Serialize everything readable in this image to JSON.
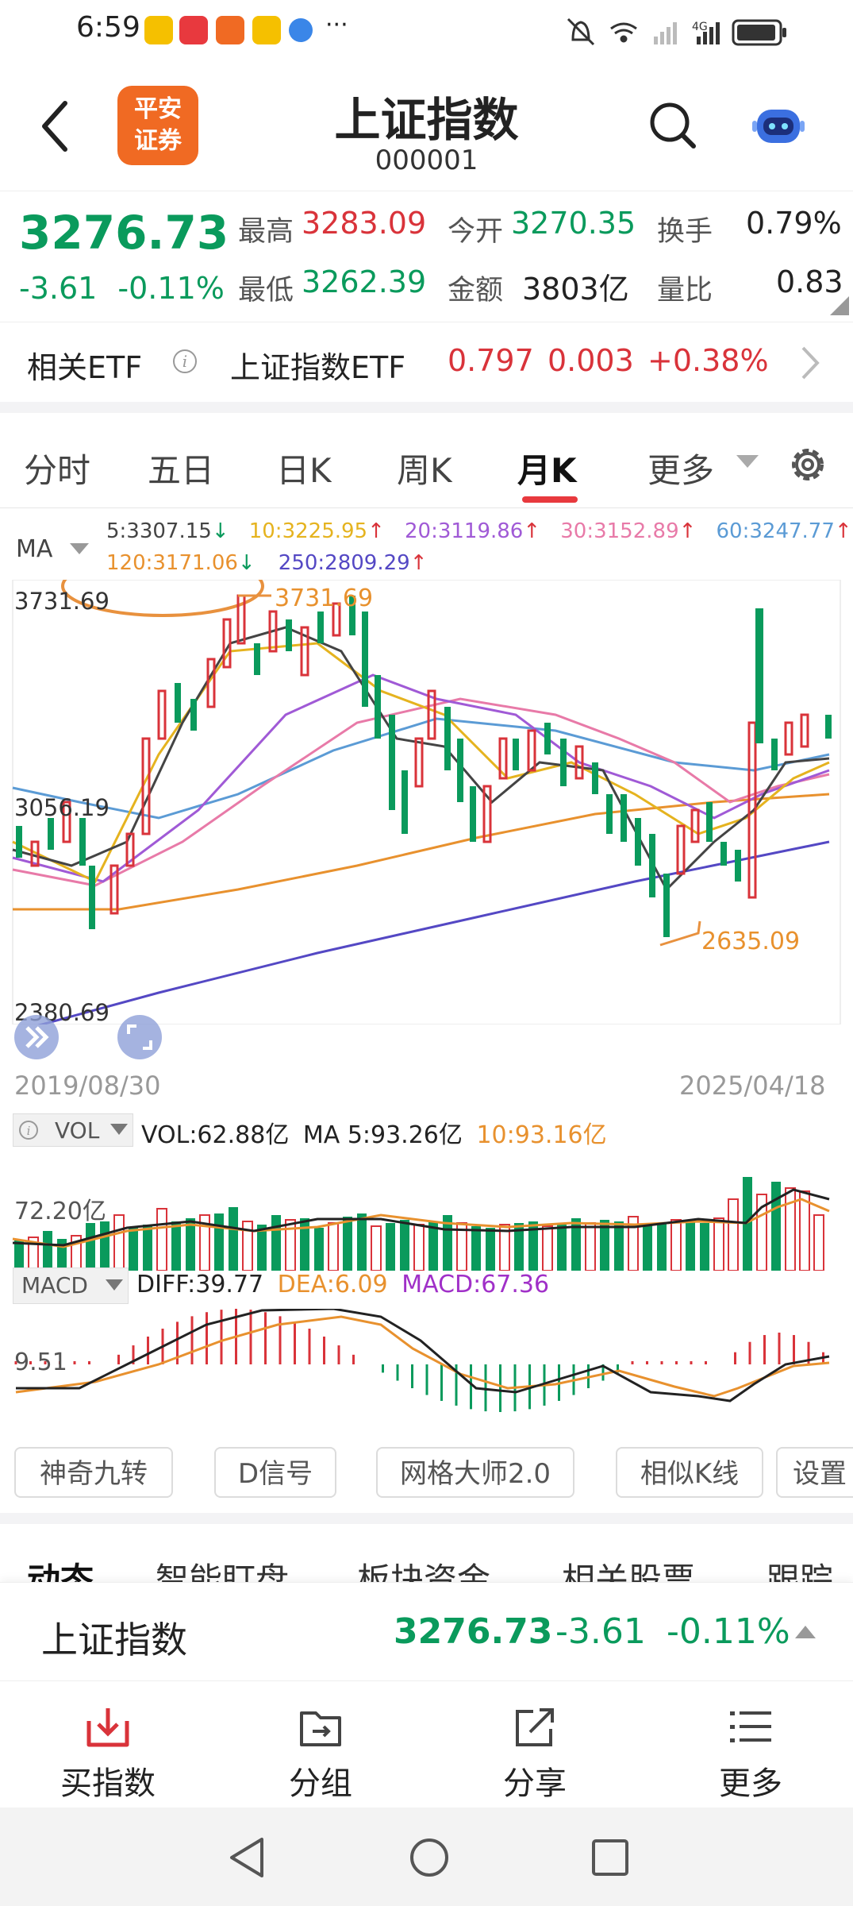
{
  "status_bar": {
    "time": "6:59",
    "dots": "···",
    "right": "🔕 ⌔ ⁴ᴳ ▮"
  },
  "header": {
    "logo_text": "平安\n证券",
    "logo_line1": "平安",
    "logo_line2": "证券",
    "title": "上证指数",
    "code": "000001"
  },
  "quote": {
    "price": "3276.73",
    "change": "-3.61",
    "change_pct": "-0.11%",
    "high_label": "最高",
    "high": "3283.09",
    "low_label": "最低",
    "low": "3262.39",
    "open_label": "今开",
    "open": "3270.35",
    "amount_label": "金额",
    "amount": "3803亿",
    "turnover_label": "换手",
    "turnover": "0.79%",
    "vol_ratio_label": "量比",
    "vol_ratio": "0.83"
  },
  "etf": {
    "label": "相关ETF",
    "name": "上证指数ETF",
    "price": "0.797",
    "change": "0.003",
    "pct": "+0.38%"
  },
  "tabs": [
    "分时",
    "五日",
    "日K",
    "周K",
    "月K",
    "更多"
  ],
  "active_tab": "月K",
  "chart": {
    "ma_label": "MA",
    "ma": [
      {
        "label": "5:3307.15",
        "arrow": "↓",
        "color": "#444444",
        "arrow_color": "#0a9a5c"
      },
      {
        "label": "10:3225.95",
        "arrow": "↑",
        "color": "#e5b31f",
        "arrow_color": "#d9333a"
      },
      {
        "label": "20:3119.86",
        "arrow": "↑",
        "color": "#a05ad6",
        "arrow_color": "#d9333a"
      },
      {
        "label": "30:3152.89",
        "arrow": "↑",
        "color": "#e87aa8",
        "arrow_color": "#d9333a"
      },
      {
        "label": "60:3247.77",
        "arrow": "↑",
        "color": "#5b9bd5",
        "arrow_color": "#d9333a"
      },
      {
        "label": "120:3171.06",
        "arrow": "↓",
        "color": "#e8912e",
        "arrow_color": "#0a9a5c"
      },
      {
        "label": "250:2809.29",
        "arrow": "↑",
        "color": "#5448c4",
        "arrow_color": "#d9333a"
      }
    ],
    "y_top": "3731.69",
    "y_mid": "3056.19",
    "y_bot": "2380.69",
    "high_mark": "3731.69",
    "low_mark": "2635.09",
    "date_start": "2019/08/30",
    "date_end": "2025/04/18",
    "vol_label": "VOL",
    "vol_value": "VOL:62.88亿",
    "vol_ma5": "MA 5:93.26亿",
    "vol_ma10": "10:93.16亿",
    "vol_axis": "72.20亿",
    "macd_label": "MACD",
    "diff": "DIFF:39.77",
    "dea": "DEA:6.09",
    "macd": "MACD:67.36",
    "macd_axis": "9.51"
  },
  "tools": [
    "神奇九转",
    "D信号",
    "网格大师2.0",
    "相似K线",
    "设置"
  ],
  "subtabs": [
    "动态",
    "智能盯盘",
    "板块资金",
    "相关股票",
    "跟踪基"
  ],
  "pinned": {
    "name": "上证指数",
    "price": "3276.73",
    "change": "-3.61",
    "pct": "-0.11%"
  },
  "actions": [
    "买指数",
    "分组",
    "分享",
    "更多"
  ],
  "colors": {
    "up": "#d9333a",
    "down": "#0a9a5c",
    "accent": "#e8393e",
    "brand": "#f06a23"
  }
}
